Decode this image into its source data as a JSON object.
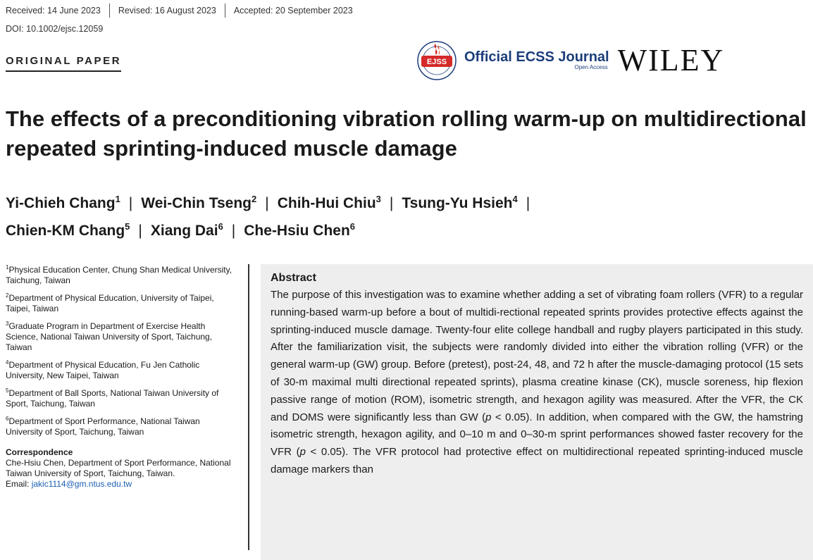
{
  "header": {
    "received": "Received: 14 June 2023",
    "revised": "Revised: 16 August 2023",
    "accepted": "Accepted: 20 September 2023",
    "doi": "DOI: 10.1002/ejsc.12059",
    "paper_type": "ORIGINAL PAPER"
  },
  "journal": {
    "seal_text": "EJSS",
    "name": "Official ECSS Journal",
    "access": "Open Access",
    "publisher": "WILEY"
  },
  "title": "The effects of a preconditioning vibration rolling warm-up on multidirectional repeated sprinting-induced muscle damage",
  "authors": [
    {
      "name": "Yi-Chieh Chang",
      "sup": "1"
    },
    {
      "name": "Wei-Chin Tseng",
      "sup": "2"
    },
    {
      "name": "Chih-Hui Chiu",
      "sup": "3"
    },
    {
      "name": "Tsung-Yu Hsieh",
      "sup": "4"
    },
    {
      "name": "Chien-KM Chang",
      "sup": "5"
    },
    {
      "name": "Xiang Dai",
      "sup": "6"
    },
    {
      "name": "Che-Hsiu Chen",
      "sup": "6"
    }
  ],
  "affiliations": [
    {
      "sup": "1",
      "text": "Physical Education Center, Chung Shan Medical University, Taichung, Taiwan"
    },
    {
      "sup": "2",
      "text": "Department of Physical Education, University of Taipei, Taipei, Taiwan"
    },
    {
      "sup": "3",
      "text": "Graduate Program in Department of Exercise Health Science, National Taiwan University of Sport, Taichung, Taiwan"
    },
    {
      "sup": "4",
      "text": "Department of Physical Education, Fu Jen Catholic University, New Taipei, Taiwan"
    },
    {
      "sup": "5",
      "text": "Department of Ball Sports, National Taiwan University of Sport, Taichung, Taiwan"
    },
    {
      "sup": "6",
      "text": "Department of Sport Performance, National Taiwan University of Sport, Taichung, Taiwan"
    }
  ],
  "correspondence": {
    "label": "Correspondence",
    "text": "Che-Hsiu Chen, Department of Sport Performance, National Taiwan University of Sport, Taichung, Taiwan.",
    "email_label": "Email: ",
    "email": "jakic1114@gm.ntus.edu.tw"
  },
  "abstract": {
    "heading": "Abstract",
    "body_part1": "The purpose of this investigation was to examine whether adding a set of vibrating foam rollers (VFR) to a regular running-based warm-up before a bout of multidi-rectional repeated sprints provides protective effects against the sprinting-induced muscle damage. Twenty-four elite college handball and rugby players participated in this study. After the familiarization visit, the subjects were randomly divided into either the vibration rolling (VFR) or the general warm-up (GW) group. Before (pretest), post-24, 48, and 72 h after the muscle-damaging protocol (15 sets of 30-m maximal multi directional repeated sprints), plasma creatine kinase (CK), muscle soreness, hip flexion passive range of motion (ROM), isometric strength, and hexagon agility was measured. After the VFR, the CK and DOMS were significantly less than GW (",
    "p_symbol": "p",
    "body_part2": " < 0.05). In addition, when compared with the GW, the hamstring isometric strength, hexagon agility, and 0–10 m and 0–30-m sprint performances showed faster recovery for the VFR (",
    "body_part3": " < 0.05). The VFR protocol had protective effect on multidirectional repeated sprinting-induced muscle damage markers than"
  },
  "colors": {
    "journal_blue": "#1c3d7a",
    "seal_red": "#d42a2a",
    "link_blue": "#1a5fb4",
    "abstract_bg": "#eeeeee"
  }
}
